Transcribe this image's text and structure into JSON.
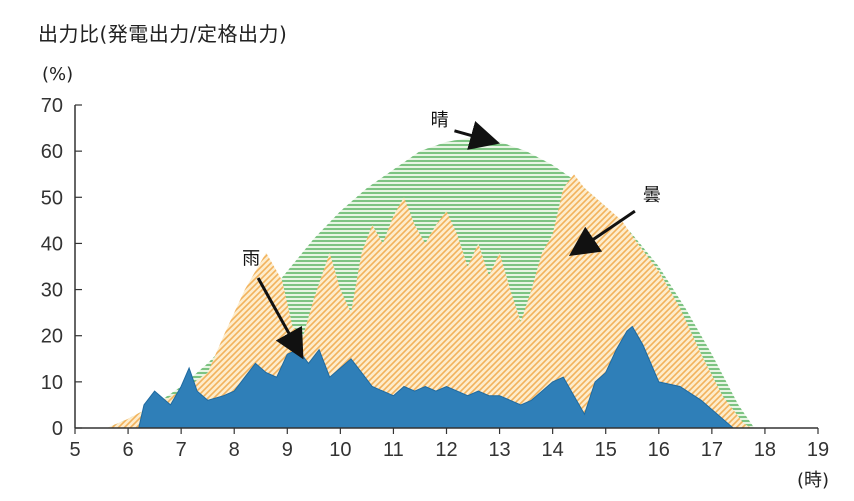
{
  "chart_data": {
    "type": "area",
    "title": "出力比(発電出力/定格出力)",
    "ylabel": "(%)",
    "xlabel": "(時)",
    "xlim": [
      5,
      19
    ],
    "ylim": [
      0,
      70
    ],
    "x_ticks": [
      5,
      6,
      7,
      8,
      9,
      10,
      11,
      12,
      13,
      14,
      15,
      16,
      17,
      18,
      19
    ],
    "y_ticks": [
      0,
      10,
      20,
      30,
      40,
      50,
      60,
      70
    ],
    "grid": false,
    "series": [
      {
        "name": "晴",
        "color": "#6cbf6e",
        "pattern": "horizontal-lines",
        "points": [
          [
            5.6,
            0
          ],
          [
            6.0,
            2
          ],
          [
            6.5,
            5
          ],
          [
            7.0,
            9
          ],
          [
            7.5,
            14
          ],
          [
            8.0,
            20
          ],
          [
            8.5,
            27
          ],
          [
            9.0,
            34
          ],
          [
            9.5,
            41
          ],
          [
            10.0,
            47
          ],
          [
            10.5,
            52
          ],
          [
            11.0,
            56
          ],
          [
            11.5,
            60
          ],
          [
            12.0,
            62
          ],
          [
            12.5,
            63
          ],
          [
            13.0,
            62
          ],
          [
            13.5,
            60
          ],
          [
            14.0,
            57
          ],
          [
            14.5,
            53
          ],
          [
            15.0,
            48
          ],
          [
            15.5,
            42
          ],
          [
            16.0,
            35
          ],
          [
            16.5,
            26
          ],
          [
            17.0,
            16
          ],
          [
            17.5,
            5
          ],
          [
            17.8,
            0
          ]
        ]
      },
      {
        "name": "曇",
        "color": "#f5c77a",
        "pattern": "diagonal-lines",
        "points": [
          [
            5.6,
            0
          ],
          [
            6.0,
            2
          ],
          [
            6.5,
            5
          ],
          [
            7.0,
            8
          ],
          [
            7.5,
            12
          ],
          [
            7.8,
            20
          ],
          [
            8.2,
            30
          ],
          [
            8.6,
            38
          ],
          [
            8.9,
            32
          ],
          [
            9.1,
            22
          ],
          [
            9.3,
            20
          ],
          [
            9.5,
            28
          ],
          [
            9.8,
            38
          ],
          [
            10.0,
            30
          ],
          [
            10.2,
            25
          ],
          [
            10.4,
            38
          ],
          [
            10.6,
            44
          ],
          [
            10.8,
            40
          ],
          [
            11.0,
            46
          ],
          [
            11.2,
            50
          ],
          [
            11.4,
            44
          ],
          [
            11.6,
            40
          ],
          [
            11.8,
            44
          ],
          [
            12.0,
            47
          ],
          [
            12.2,
            42
          ],
          [
            12.4,
            35
          ],
          [
            12.6,
            40
          ],
          [
            12.8,
            33
          ],
          [
            13.0,
            38
          ],
          [
            13.2,
            30
          ],
          [
            13.4,
            23
          ],
          [
            13.6,
            30
          ],
          [
            13.8,
            38
          ],
          [
            14.0,
            42
          ],
          [
            14.2,
            52
          ],
          [
            14.4,
            55
          ],
          [
            14.6,
            52
          ],
          [
            14.8,
            50
          ],
          [
            15.0,
            48
          ],
          [
            15.3,
            45
          ],
          [
            15.6,
            40
          ],
          [
            16.0,
            34
          ],
          [
            16.4,
            26
          ],
          [
            16.8,
            16
          ],
          [
            17.2,
            7
          ],
          [
            17.6,
            1
          ],
          [
            17.75,
            0
          ]
        ]
      },
      {
        "name": "雨",
        "color": "#2f7fb8",
        "pattern": "solid",
        "points": [
          [
            6.2,
            0
          ],
          [
            6.3,
            5
          ],
          [
            6.5,
            8
          ],
          [
            6.8,
            5
          ],
          [
            7.0,
            9
          ],
          [
            7.15,
            13
          ],
          [
            7.3,
            8
          ],
          [
            7.5,
            6
          ],
          [
            7.8,
            7
          ],
          [
            8.0,
            8
          ],
          [
            8.2,
            11
          ],
          [
            8.4,
            14
          ],
          [
            8.6,
            12
          ],
          [
            8.8,
            11
          ],
          [
            9.0,
            16
          ],
          [
            9.2,
            17
          ],
          [
            9.4,
            14
          ],
          [
            9.6,
            17
          ],
          [
            9.8,
            11
          ],
          [
            10.0,
            13
          ],
          [
            10.2,
            15
          ],
          [
            10.4,
            12
          ],
          [
            10.6,
            9
          ],
          [
            10.8,
            8
          ],
          [
            11.0,
            7
          ],
          [
            11.2,
            9
          ],
          [
            11.4,
            8
          ],
          [
            11.6,
            9
          ],
          [
            11.8,
            8
          ],
          [
            12.0,
            9
          ],
          [
            12.2,
            8
          ],
          [
            12.4,
            7
          ],
          [
            12.6,
            8
          ],
          [
            12.8,
            7
          ],
          [
            13.0,
            7
          ],
          [
            13.2,
            6
          ],
          [
            13.4,
            5
          ],
          [
            13.6,
            6
          ],
          [
            13.8,
            8
          ],
          [
            14.0,
            10
          ],
          [
            14.2,
            11
          ],
          [
            14.4,
            7
          ],
          [
            14.6,
            3
          ],
          [
            14.8,
            10
          ],
          [
            15.0,
            12
          ],
          [
            15.2,
            17
          ],
          [
            15.4,
            21
          ],
          [
            15.5,
            22
          ],
          [
            15.7,
            18
          ],
          [
            16.0,
            10
          ],
          [
            16.4,
            9
          ],
          [
            16.8,
            6
          ],
          [
            17.2,
            2
          ],
          [
            17.4,
            0
          ]
        ]
      }
    ],
    "annotations": [
      {
        "text": "晴",
        "series": "晴"
      },
      {
        "text": "曇",
        "series": "曇"
      },
      {
        "text": "雨",
        "series": "雨"
      }
    ]
  }
}
